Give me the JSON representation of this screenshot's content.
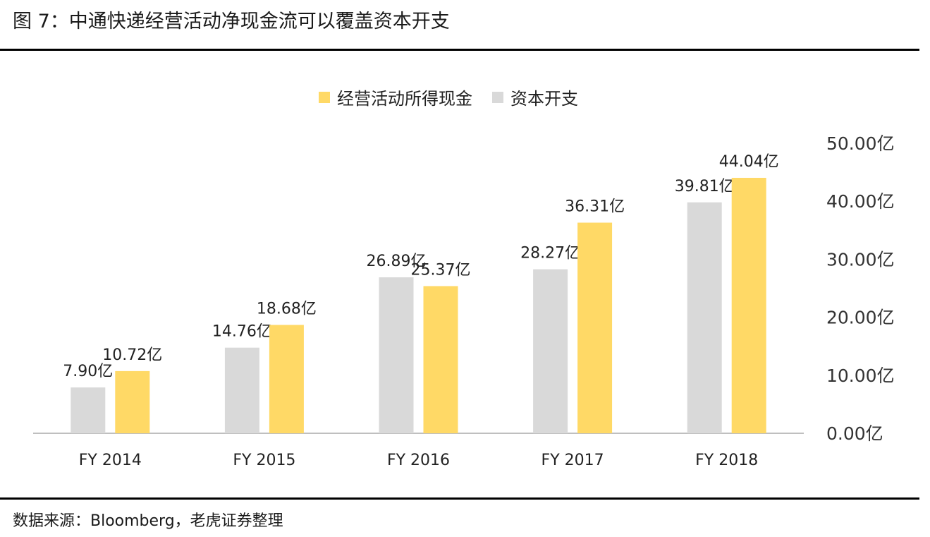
{
  "title": "图 7：中通快递经营活动净现金流可以覆盖资本开支",
  "source": "数据来源：Bloomberg，老虎证券整理",
  "colors": {
    "operating_cash": "#FFD966",
    "capex": "#D9D9D9",
    "axis": "#BFBFBF"
  },
  "chart_data": {
    "type": "bar",
    "categories": [
      "FY 2014",
      "FY 2015",
      "FY 2016",
      "FY 2017",
      "FY 2018"
    ],
    "series": [
      {
        "name": "资本开支",
        "values": [
          7.9,
          14.76,
          26.89,
          28.27,
          39.81
        ],
        "labels": [
          "7.90亿",
          "14.76亿",
          "26.89亿",
          "28.27亿",
          "39.81亿"
        ]
      },
      {
        "name": "经营活动所得现金",
        "values": [
          10.72,
          18.68,
          25.37,
          36.31,
          44.04
        ],
        "labels": [
          "10.72亿",
          "18.68亿",
          "25.37亿",
          "36.31亿",
          "44.04亿"
        ]
      }
    ],
    "legend": [
      "经营活动所得现金",
      "资本开支"
    ],
    "legend_position": "top",
    "y_axis_position": "right",
    "ylim": [
      0,
      50
    ],
    "yticks": [
      0,
      10,
      20,
      30,
      40,
      50
    ],
    "ytick_labels": [
      "0.00亿",
      "10.00亿",
      "20.00亿",
      "30.00亿",
      "40.00亿",
      "50.00亿"
    ],
    "grid": false
  }
}
